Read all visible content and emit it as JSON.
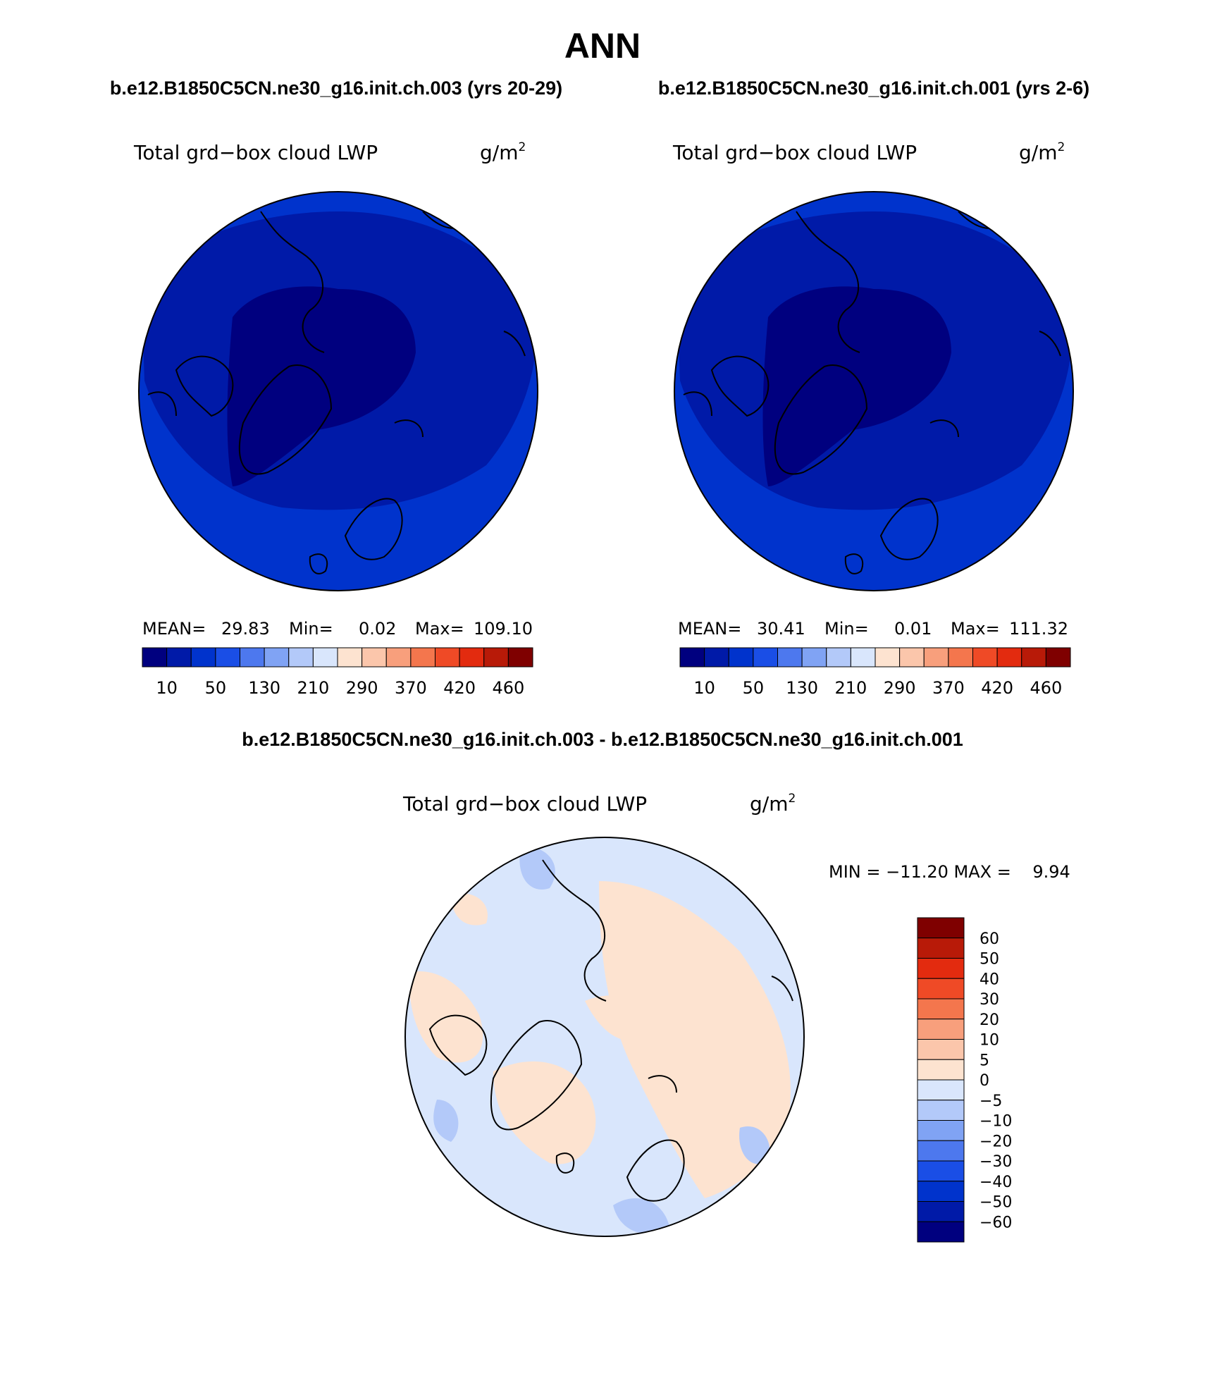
{
  "page": {
    "title": "ANN",
    "subtitle_left": "b.e12.B1850C5CN.ne30_g16.init.ch.003 (yrs 20-29)",
    "subtitle_right": "b.e12.B1850C5CN.ne30_g16.init.ch.001 (yrs 2-6)",
    "diff_title": "b.e12.B1850C5CN.ne30_g16.init.ch.003 - b.e12.B1850C5CN.ne30_g16.init.ch.001"
  },
  "colors": {
    "main_palette": [
      "#00007f",
      "#001aa8",
      "#0033cc",
      "#1a4ee6",
      "#4d78ee",
      "#80a3f4",
      "#b3c9f9",
      "#d9e6fc",
      "#fde3d0",
      "#fbc6ab",
      "#f89f7c",
      "#f4764d",
      "#ef4a26",
      "#e32b0f",
      "#b81a08",
      "#7f0000"
    ],
    "diff_palette": [
      "#00007f",
      "#001aa8",
      "#0033cc",
      "#1a4ee6",
      "#4d78ee",
      "#80a3f4",
      "#b3c9f9",
      "#d9e6fc",
      "#fde3d0",
      "#fbc6ab",
      "#f89f7c",
      "#f4764d",
      "#ef4a26",
      "#e32b0f",
      "#b81a08",
      "#7f0000"
    ]
  },
  "chart_data": [
    {
      "type": "map",
      "projection": "north-polar-stereographic",
      "variable": "Total grd−box cloud LWP",
      "units": "g/m",
      "units_exp": "2",
      "stats": {
        "mean_label": "MEAN=",
        "mean": "29.83",
        "min_label": "Min=",
        "min": "0.02",
        "max_label": "Max=",
        "max": "109.10"
      },
      "colorbar_ticks": [
        "10",
        "50",
        "130",
        "210",
        "290",
        "370",
        "420",
        "460"
      ],
      "region_fills": [
        "very-dark-blue pole & Greenland",
        "dark-blue mid-latitudes",
        "medium-blue outer ring"
      ]
    },
    {
      "type": "map",
      "projection": "north-polar-stereographic",
      "variable": "Total grd−box cloud LWP",
      "units": "g/m",
      "units_exp": "2",
      "stats": {
        "mean_label": "MEAN=",
        "mean": "30.41",
        "min_label": "Min=",
        "min": "0.01",
        "max_label": "Max=",
        "max": "111.32"
      },
      "colorbar_ticks": [
        "10",
        "50",
        "130",
        "210",
        "290",
        "370",
        "420",
        "460"
      ],
      "region_fills": [
        "very-dark-blue pole & Greenland",
        "dark-blue mid-latitudes",
        "medium-blue outer ring"
      ]
    },
    {
      "type": "map",
      "projection": "north-polar-stereographic",
      "variable": "Total grd−box cloud LWP",
      "units": "g/m",
      "units_exp": "2",
      "stats_text": "MIN = −11.20 MAX =    9.94",
      "colorbar_ticks": [
        "60",
        "50",
        "40",
        "30",
        "20",
        "10",
        "5",
        "0",
        "−5",
        "−10",
        "−20",
        "−30",
        "−40",
        "−50",
        "−60"
      ],
      "region_fills": [
        "light-blue (-5..0) majority",
        "light-peach (0..5) patches",
        "pale-blue (-10..-5) patches"
      ]
    }
  ]
}
